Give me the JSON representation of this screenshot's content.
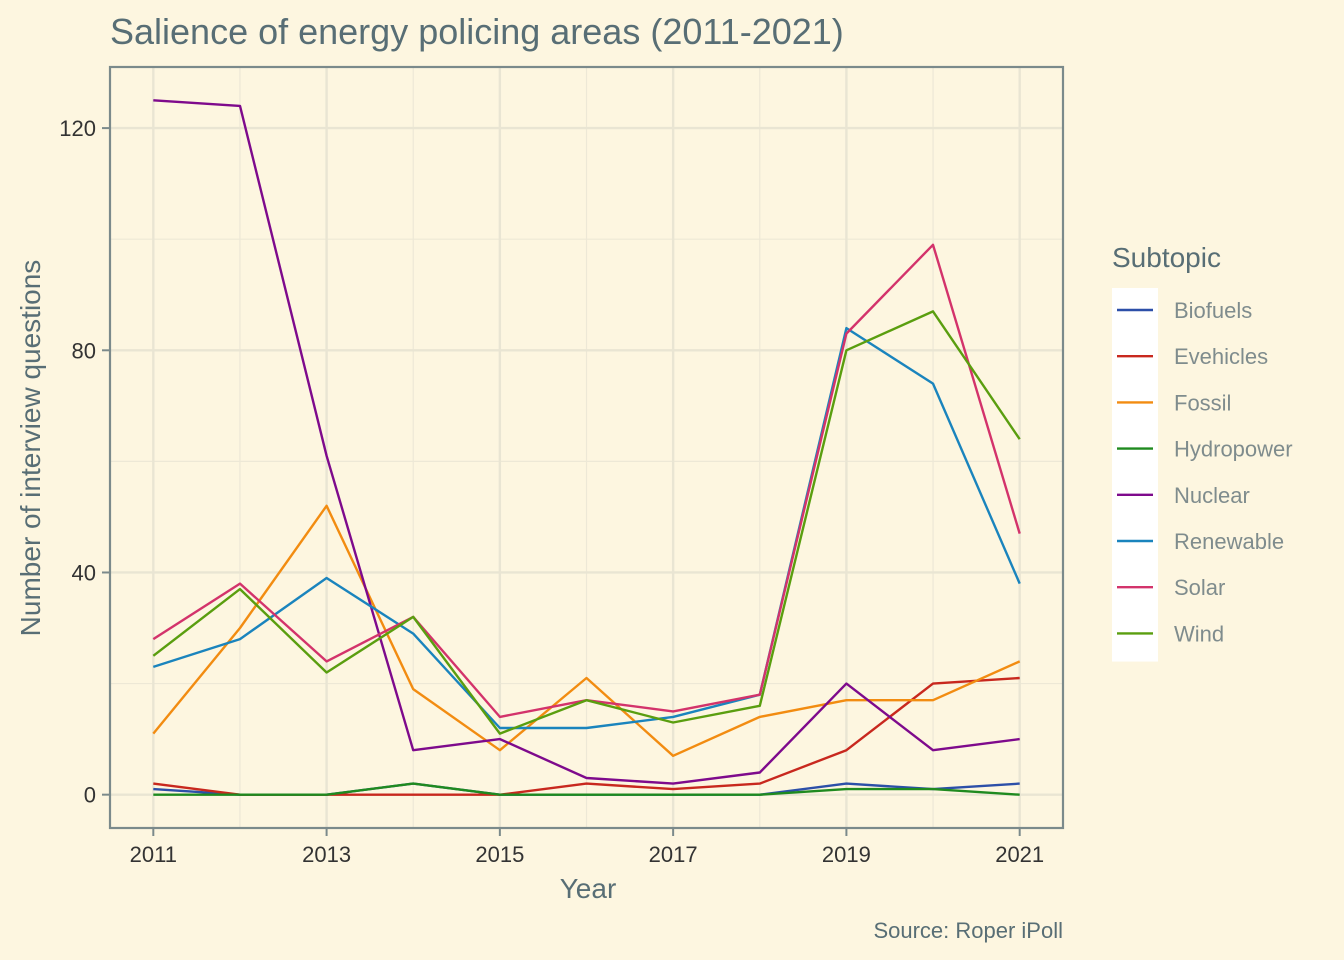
{
  "chart_data": {
    "type": "line",
    "title": "Salience of energy policing areas (2011-2021)",
    "xlabel": "Year",
    "ylabel": "Number of interview questions",
    "caption": "Source: Roper iPoll",
    "legend_title": "Subtopic",
    "legend_position": "right",
    "grid": true,
    "xlim": [
      2010.5,
      2021.5
    ],
    "ylim": [
      -6,
      131
    ],
    "x_ticks": [
      "2011",
      "2013",
      "2015",
      "2017",
      "2019",
      "2021"
    ],
    "y_ticks": [
      "0",
      "40",
      "80",
      "120"
    ],
    "x": [
      2011,
      2012,
      2013,
      2014,
      2015,
      2016,
      2017,
      2018,
      2019,
      2020,
      2021
    ],
    "series": [
      {
        "name": "Biofuels",
        "color": "#2c4fa8",
        "values": [
          1,
          0,
          0,
          2,
          0,
          0,
          0,
          0,
          2,
          1,
          2
        ]
      },
      {
        "name": "Evehicles",
        "color": "#c8281e",
        "values": [
          2,
          0,
          0,
          0,
          0,
          2,
          1,
          2,
          8,
          20,
          21
        ]
      },
      {
        "name": "Fossil",
        "color": "#f28c11",
        "values": [
          11,
          30,
          52,
          19,
          8,
          21,
          7,
          14,
          17,
          17,
          24
        ]
      },
      {
        "name": "Hydropower",
        "color": "#1f8a1f",
        "values": [
          0,
          0,
          0,
          2,
          0,
          0,
          0,
          0,
          1,
          1,
          0
        ]
      },
      {
        "name": "Nuclear",
        "color": "#7e0a8c",
        "values": [
          125,
          124,
          61,
          8,
          10,
          3,
          2,
          4,
          20,
          8,
          10
        ]
      },
      {
        "name": "Renewable",
        "color": "#1a84bd",
        "values": [
          23,
          28,
          39,
          29,
          12,
          12,
          14,
          18,
          84,
          74,
          38
        ]
      },
      {
        "name": "Solar",
        "color": "#d3336b",
        "values": [
          28,
          38,
          24,
          32,
          14,
          17,
          15,
          18,
          83,
          99,
          47
        ]
      },
      {
        "name": "Wind",
        "color": "#5a9e0f",
        "values": [
          25,
          37,
          22,
          32,
          11,
          17,
          13,
          16,
          80,
          87,
          64
        ]
      }
    ]
  }
}
